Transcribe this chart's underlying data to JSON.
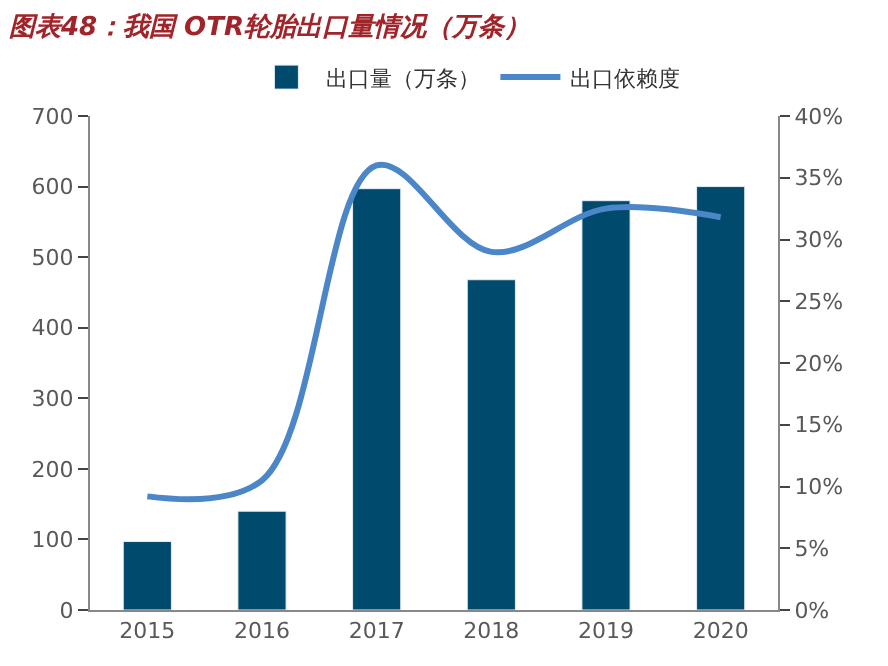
{
  "chart_data": {
    "type": "bar",
    "title": "图表48：我国 OTR轮胎出口量情况（万条）",
    "categories": [
      "2015",
      "2016",
      "2017",
      "2018",
      "2019",
      "2020"
    ],
    "series": [
      {
        "name": "出口量（万条）",
        "color": "#004a6e",
        "values": [
          97,
          140,
          597,
          468,
          580,
          600
        ]
      },
      {
        "name": "出口依赖度",
        "type": "line",
        "axis": "y2",
        "color": "#4a86c8",
        "values": [
          9.2,
          10.5,
          36,
          29,
          32.5,
          31.8
        ]
      }
    ],
    "ylim": [
      0,
      700
    ],
    "yticks": [
      0,
      100,
      200,
      300,
      400,
      500,
      600,
      700
    ],
    "y2lim": [
      0,
      40
    ],
    "y2ticks": [
      {
        "value": 0,
        "label": "0%"
      },
      {
        "value": 5,
        "label": "5%"
      },
      {
        "value": 10,
        "label": "10%"
      },
      {
        "value": 15,
        "label": "15%"
      },
      {
        "value": 20,
        "label": "20%"
      },
      {
        "value": 25,
        "label": "25%"
      },
      {
        "value": 30,
        "label": "30%"
      },
      {
        "value": 35,
        "label": "35%"
      },
      {
        "value": 40,
        "label": "40%"
      }
    ],
    "legend": "top"
  }
}
